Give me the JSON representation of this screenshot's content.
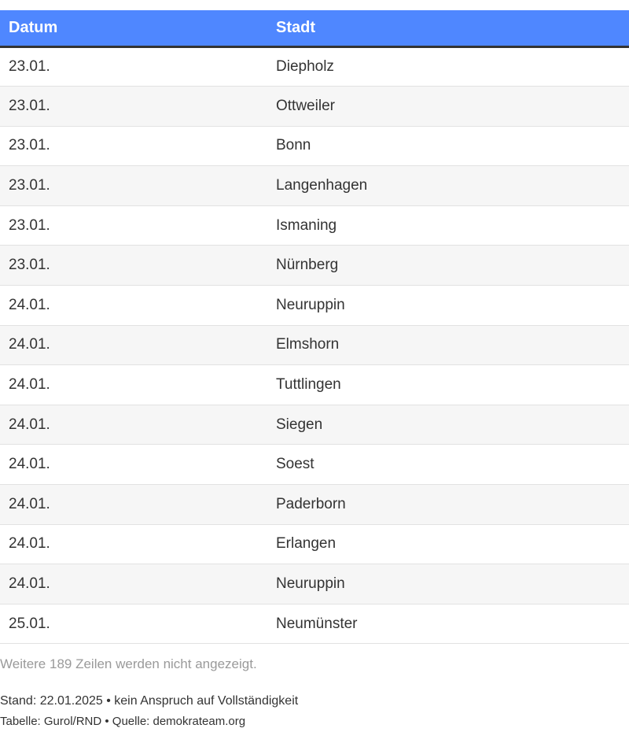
{
  "table": {
    "headers": [
      "Datum",
      "Stadt"
    ],
    "rows": [
      [
        "23.01.",
        "Diepholz"
      ],
      [
        "23.01.",
        "Ottweiler"
      ],
      [
        "23.01.",
        "Bonn"
      ],
      [
        "23.01.",
        "Langenhagen"
      ],
      [
        "23.01.",
        "Ismaning"
      ],
      [
        "23.01.",
        "Nürnberg"
      ],
      [
        "24.01.",
        "Neuruppin"
      ],
      [
        "24.01.",
        "Elmshorn"
      ],
      [
        "24.01.",
        "Tuttlingen"
      ],
      [
        "24.01.",
        "Siegen"
      ],
      [
        "24.01.",
        "Soest"
      ],
      [
        "24.01.",
        "Paderborn"
      ],
      [
        "24.01.",
        "Erlangen"
      ],
      [
        "24.01.",
        "Neuruppin"
      ],
      [
        "25.01.",
        "Neumünster"
      ]
    ],
    "more_rows_note": "Weitere 189 Zeilen werden nicht angezeigt.",
    "header_color": "#4f87ff"
  },
  "footer": {
    "note": "Stand: 22.01.2025 • kein Anspruch auf Vollständigkeit",
    "credits": "Tabelle: Gurol/RND • Quelle: demokrateam.org"
  }
}
